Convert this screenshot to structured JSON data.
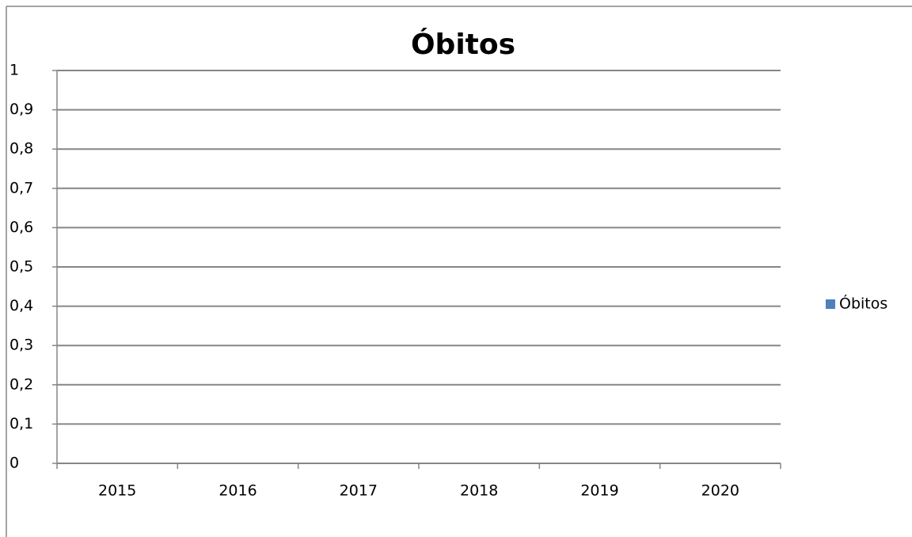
{
  "chart_data": {
    "type": "bar",
    "title": "Óbitos",
    "categories": [
      "2015",
      "2016",
      "2017",
      "2018",
      "2019",
      "2020"
    ],
    "series": [
      {
        "name": "Óbitos",
        "color": "#4f81bd",
        "values": [
          null,
          null,
          null,
          null,
          null,
          null
        ]
      }
    ],
    "ylim": [
      0,
      1
    ],
    "yticks": [
      0,
      {
        "value": 0.1,
        "label": "0,1"
      },
      {
        "value": 0.2,
        "label": "0,2"
      },
      {
        "value": 0.3,
        "label": "0,3"
      },
      {
        "value": 0.4,
        "label": "0,4"
      },
      {
        "value": 0.5,
        "label": "0,5"
      },
      {
        "value": 0.6,
        "label": "0,6"
      },
      {
        "value": 0.7,
        "label": "0,7"
      },
      {
        "value": 0.8,
        "label": "0,8"
      },
      {
        "value": 0.9,
        "label": "0,9"
      },
      1
    ],
    "grid": true,
    "legend": "right"
  }
}
